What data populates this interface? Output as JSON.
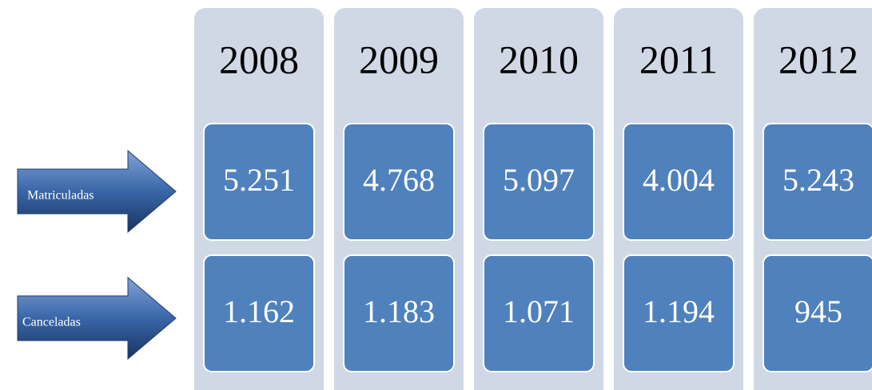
{
  "row_labels": [
    "Matriculadas",
    "Canceladas"
  ],
  "columns": [
    {
      "year": "2008",
      "values": [
        "5.251",
        "1.162"
      ]
    },
    {
      "year": "2009",
      "values": [
        "4.768",
        "1.183"
      ]
    },
    {
      "year": "2010",
      "values": [
        "5.097",
        "1.071"
      ]
    },
    {
      "year": "2011",
      "values": [
        "4.004",
        "1.194"
      ]
    },
    {
      "year": "2012",
      "values": [
        "5.243",
        "945"
      ]
    }
  ]
}
